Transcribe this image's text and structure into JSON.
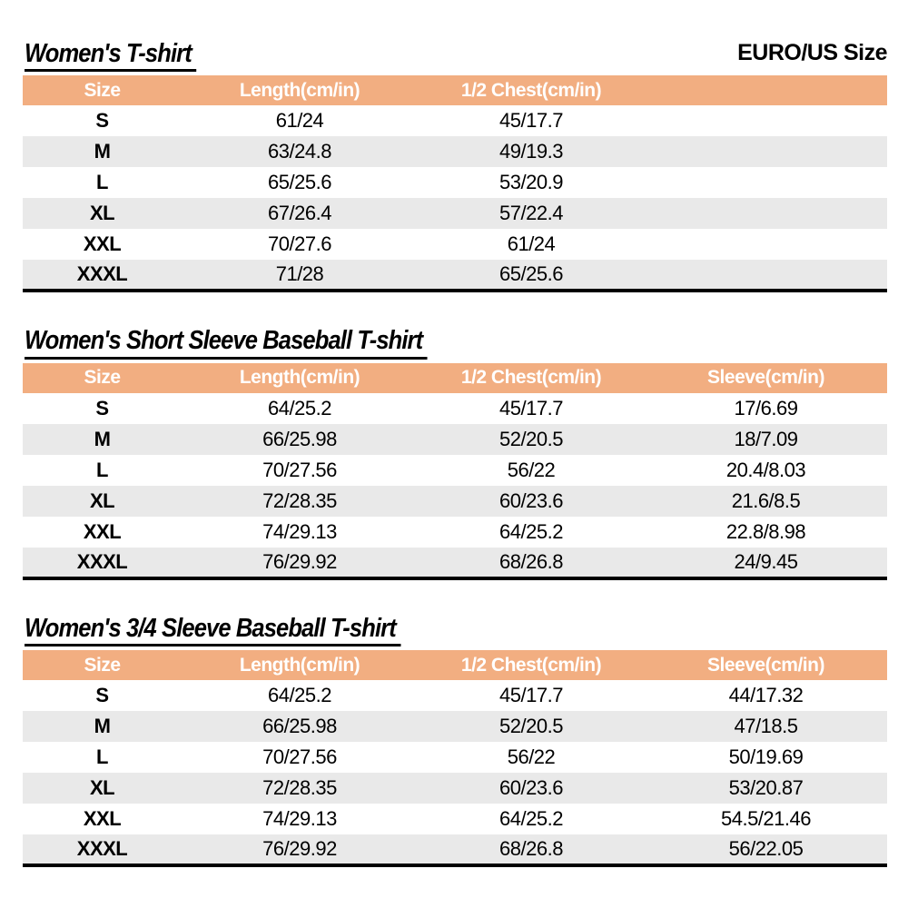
{
  "page": {
    "size_standard_label": "EURO/US Size"
  },
  "colors": {
    "header_bg": "#F2AE81",
    "header_text": "#FFFFFF",
    "row_alt_bg": "#E9E9E9",
    "table_border": "#000000"
  },
  "tables": [
    {
      "title": "Women's T-shirt",
      "columns": [
        "Size",
        "Length(cm/in)",
        "1/2 Chest(cm/in)",
        ""
      ],
      "rows": [
        [
          "S",
          "61/24",
          "45/17.7",
          ""
        ],
        [
          "M",
          "63/24.8",
          "49/19.3",
          ""
        ],
        [
          "L",
          "65/25.6",
          "53/20.9",
          ""
        ],
        [
          "XL",
          "67/26.4",
          "57/22.4",
          ""
        ],
        [
          "XXL",
          "70/27.6",
          "61/24",
          ""
        ],
        [
          "XXXL",
          "71/28",
          "65/25.6",
          ""
        ]
      ]
    },
    {
      "title": "Women's Short Sleeve Baseball T-shirt",
      "columns": [
        "Size",
        "Length(cm/in)",
        "1/2 Chest(cm/in)",
        "Sleeve(cm/in)"
      ],
      "rows": [
        [
          "S",
          "64/25.2",
          "45/17.7",
          "17/6.69"
        ],
        [
          "M",
          "66/25.98",
          "52/20.5",
          "18/7.09"
        ],
        [
          "L",
          "70/27.56",
          "56/22",
          "20.4/8.03"
        ],
        [
          "XL",
          "72/28.35",
          "60/23.6",
          "21.6/8.5"
        ],
        [
          "XXL",
          "74/29.13",
          "64/25.2",
          "22.8/8.98"
        ],
        [
          "XXXL",
          "76/29.92",
          "68/26.8",
          "24/9.45"
        ]
      ]
    },
    {
      "title": "Women's 3/4 Sleeve Baseball T-shirt",
      "columns": [
        "Size",
        "Length(cm/in)",
        "1/2 Chest(cm/in)",
        "Sleeve(cm/in)"
      ],
      "rows": [
        [
          "S",
          "64/25.2",
          "45/17.7",
          "44/17.32"
        ],
        [
          "M",
          "66/25.98",
          "52/20.5",
          "47/18.5"
        ],
        [
          "L",
          "70/27.56",
          "56/22",
          "50/19.69"
        ],
        [
          "XL",
          "72/28.35",
          "60/23.6",
          "53/20.87"
        ],
        [
          "XXL",
          "74/29.13",
          "64/25.2",
          "54.5/21.46"
        ],
        [
          "XXXL",
          "76/29.92",
          "68/26.8",
          "56/22.05"
        ]
      ]
    }
  ]
}
